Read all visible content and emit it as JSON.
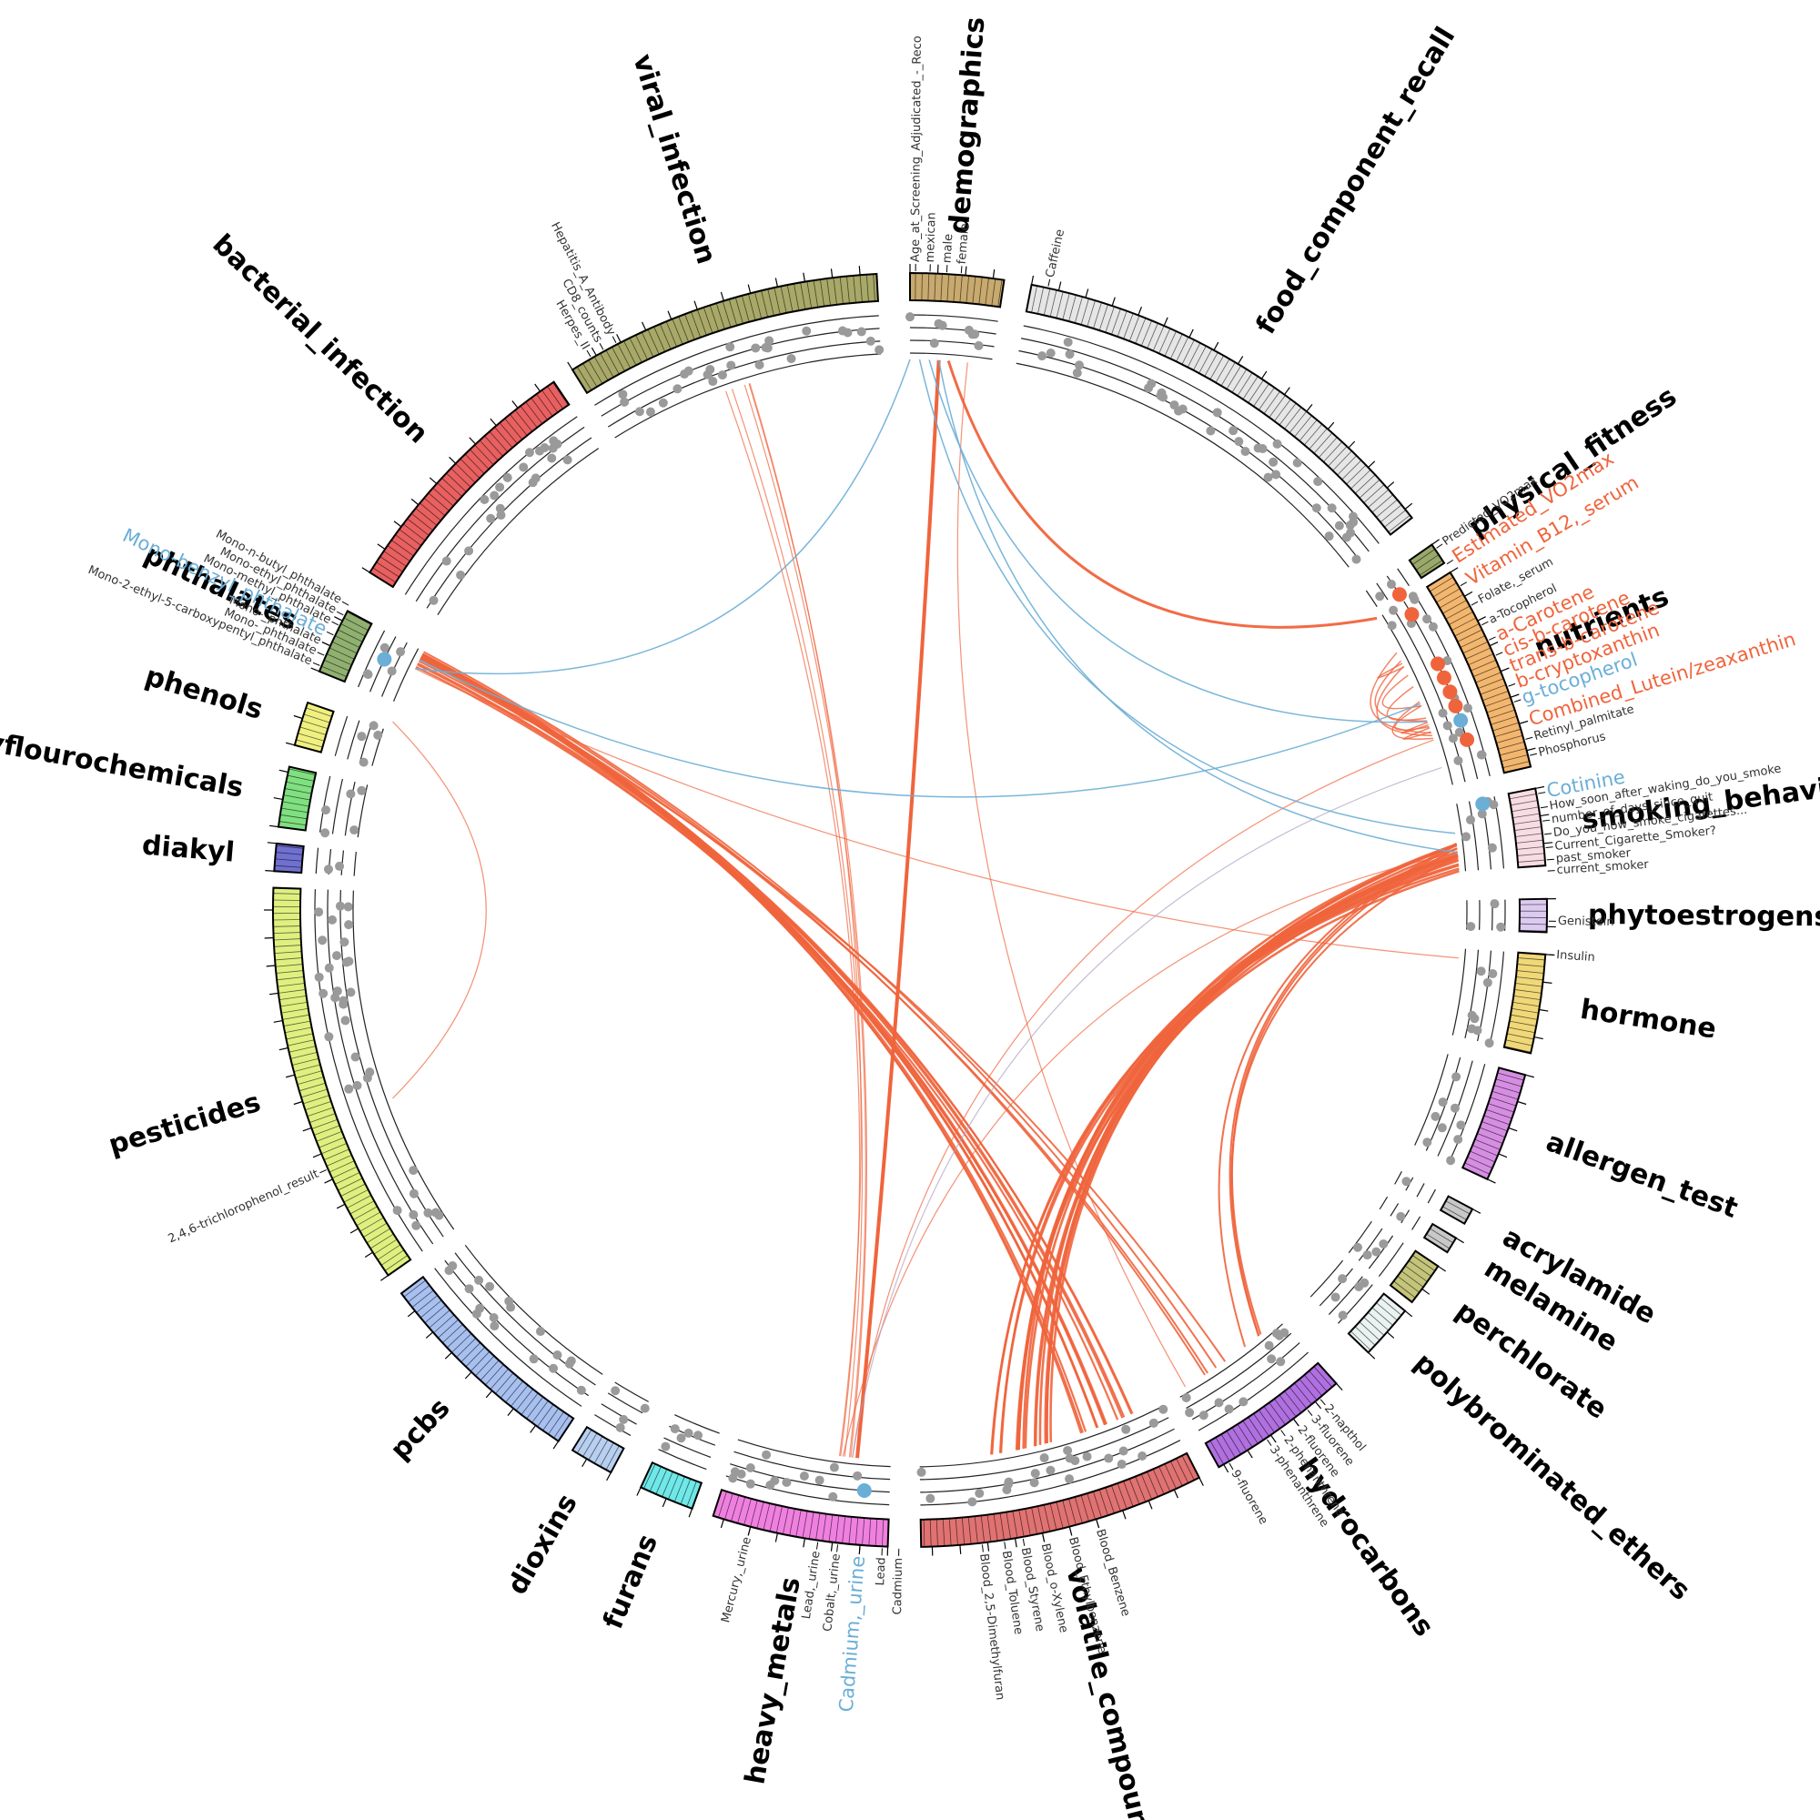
{
  "groups": [
    {
      "name": "demographics",
      "color": "#c8a96e",
      "variables": [
        {
          "label": "Age_at_Screening_Adjudicated_-_Reco",
          "color": "#333333"
        },
        {
          "label": "mexican",
          "color": "#333333"
        },
        {
          "label": "male",
          "color": "#333333"
        },
        {
          "label": "female",
          "color": "#333333"
        }
      ]
    },
    {
      "name": "food_component_recall",
      "color": "#e6e6e6",
      "variables": [
        {
          "label": "Caffeine",
          "color": "#333333"
        }
      ]
    },
    {
      "name": "physical_fitness",
      "color": "#9aa86a",
      "variables": [
        {
          "label": "Predicted_VO2max",
          "color": "#333333"
        },
        {
          "label": "Estimated_VO2max",
          "color": "#f0643c"
        }
      ]
    },
    {
      "name": "nutrients",
      "color": "#f2b66e",
      "variables": [
        {
          "label": "Vitamin_B12,_serum",
          "color": "#f0643c"
        },
        {
          "label": "Folate,_serum",
          "color": "#333333"
        },
        {
          "label": "a-Tocopherol",
          "color": "#333333"
        },
        {
          "label": "a-Carotene",
          "color": "#f0643c"
        },
        {
          "label": "cis-b-carotene",
          "color": "#f0643c"
        },
        {
          "label": "trans-b-carotene",
          "color": "#f0643c"
        },
        {
          "label": "b-cryptoxanthin",
          "color": "#f0643c"
        },
        {
          "label": "g-tocopherol",
          "color": "#6baed6"
        },
        {
          "label": "Combined_Lutein/zeaxanthin",
          "color": "#f0643c"
        },
        {
          "label": "Retinyl_palmitate",
          "color": "#333333"
        },
        {
          "label": "Phosphorus",
          "color": "#333333"
        }
      ]
    },
    {
      "name": "smoking_behavior",
      "color": "#f8dce4",
      "variables": [
        {
          "label": "Cotinine",
          "color": "#6baed6"
        },
        {
          "label": "How_soon_after_waking_do_you_smoke",
          "color": "#333333"
        },
        {
          "label": "number_of_days_since_quit",
          "color": "#333333"
        },
        {
          "label": "Do_you_now_smoke_cigarettes...",
          "color": "#333333"
        },
        {
          "label": "Current_Cigarette_Smoker?",
          "color": "#333333"
        },
        {
          "label": "past_smoker",
          "color": "#333333"
        },
        {
          "label": "current_smoker",
          "color": "#333333"
        }
      ]
    },
    {
      "name": "phytoestrogens",
      "color": "#dccaf0",
      "variables": [
        {
          "label": "Genistein",
          "color": "#333333"
        }
      ]
    },
    {
      "name": "hormone",
      "color": "#f0d878",
      "variables": [
        {
          "label": "Insulin",
          "color": "#333333"
        }
      ]
    },
    {
      "name": "allergen_test",
      "color": "#d68ee2",
      "variables": []
    },
    {
      "name": "acrylamide",
      "color": "#c8c8c8",
      "variables": []
    },
    {
      "name": "melamine",
      "color": "#c8c8c8",
      "variables": []
    },
    {
      "name": "perchlorate",
      "color": "#c4c47a",
      "variables": []
    },
    {
      "name": "polybrominated_ethers",
      "color": "#eaf2f2",
      "variables": []
    },
    {
      "name": "hydrocarbons",
      "color": "#b070e0",
      "variables": [
        {
          "label": "2-napthol",
          "color": "#333333"
        },
        {
          "label": "3-fluorene",
          "color": "#333333"
        },
        {
          "label": "2-fluorene",
          "color": "#333333"
        },
        {
          "label": "2-phenanthrene",
          "color": "#333333"
        },
        {
          "label": "3-phenanthrene",
          "color": "#333333"
        },
        {
          "label": "9-fluorene",
          "color": "#333333"
        }
      ]
    },
    {
      "name": "volatile_compounds",
      "color": "#e07272",
      "variables": [
        {
          "label": "Blood_Benzene",
          "color": "#333333"
        },
        {
          "label": "Blood_Ethylbenzene",
          "color": "#333333"
        },
        {
          "label": "Blood_o-Xylene",
          "color": "#333333"
        },
        {
          "label": "Blood_Styrene",
          "color": "#333333"
        },
        {
          "label": "Blood_Toluene",
          "color": "#333333"
        },
        {
          "label": "Blood_2,5-Dimethylfuran",
          "color": "#333333"
        }
      ]
    },
    {
      "name": "heavy_metals",
      "color": "#f080e0",
      "variables": [
        {
          "label": "Cadmium",
          "color": "#333333"
        },
        {
          "label": "Lead",
          "color": "#333333"
        },
        {
          "label": "Cadmium,_urine",
          "color": "#6baed6"
        },
        {
          "label": "Cobalt,_urine",
          "color": "#333333"
        },
        {
          "label": "Lead,_urine",
          "color": "#333333"
        },
        {
          "label": "Mercury,_urine",
          "color": "#333333"
        }
      ]
    },
    {
      "name": "furans",
      "color": "#70e8e8",
      "variables": []
    },
    {
      "name": "dioxins",
      "color": "#b8d0f0",
      "variables": []
    },
    {
      "name": "pcbs",
      "color": "#a8c0f0",
      "variables": []
    },
    {
      "name": "pesticides",
      "color": "#e0f080",
      "variables": [
        {
          "label": "2,4,6-trichlorophenol_result",
          "color": "#333333"
        }
      ]
    },
    {
      "name": "diakyl",
      "color": "#7070d0",
      "variables": []
    },
    {
      "name": "polyflourochemicals",
      "color": "#80e080",
      "variables": []
    },
    {
      "name": "phenols",
      "color": "#f0f080",
      "variables": []
    },
    {
      "name": "phthalates",
      "color": "#90b070",
      "variables": [
        {
          "label": "Mono-2-ethyl-5-carboxypentyl_phthalate",
          "color": "#333333"
        },
        {
          "label": "Mono-_phthalate",
          "color": "#333333"
        },
        {
          "label": "Mono-_phthalate",
          "color": "#333333"
        },
        {
          "label": "Mono-benzyl_phthalate",
          "color": "#6baed6"
        },
        {
          "label": "Mono-methyl_phthalate",
          "color": "#333333"
        },
        {
          "label": "Mono-ethyl_phthalate",
          "color": "#333333"
        },
        {
          "label": "Mono-n-butyl_phthalate",
          "color": "#333333"
        }
      ]
    },
    {
      "name": "bacterial_infection",
      "color": "#e86060",
      "variables": []
    },
    {
      "name": "viral_infection",
      "color": "#a8a868",
      "variables": [
        {
          "label": "Herpes_II",
          "color": "#333333"
        },
        {
          "label": "CD8_counts",
          "color": "#333333"
        },
        {
          "label": "Hepatitis_A_Antibody",
          "color": "#333333"
        }
      ]
    }
  ]
}
